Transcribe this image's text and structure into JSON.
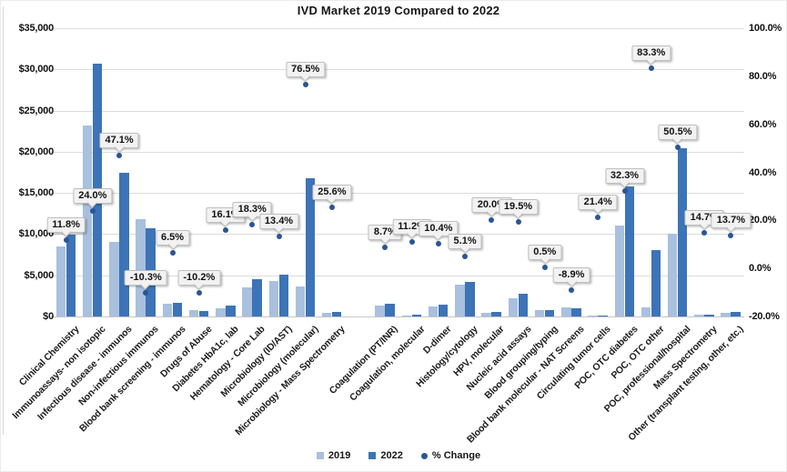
{
  "title": "IVD Market 2019 Compared to 2022",
  "legend": {
    "items": [
      {
        "label": "2019",
        "swatch": "square",
        "color": "#a9c0de"
      },
      {
        "label": "2022",
        "swatch": "square",
        "color": "#3d73b7"
      },
      {
        "label": "% Change",
        "swatch": "dot",
        "color": "#2b5594"
      }
    ]
  },
  "chart_data": {
    "type": "bar",
    "subtype": "combo-bar-with-percent-scatter",
    "title": "IVD Market 2019 Compared to 2022",
    "categories": [
      "Clinical Chemistry",
      "Immunoassays- non isotopic",
      "Infectious disease - immunos",
      "Non-infectious immunos",
      "Blood bank screening - immunos",
      "Drugs of Abuse",
      "Diabetes HbA1c, lab",
      "Hematology - Core Lab",
      "Microbiology (ID/AST)",
      "Microbiology (molecular)",
      "Microbiology - Mass Spectrometry",
      "Coagulation (PT/INR)",
      "Coagulation, molecular",
      "D-dimer",
      "Histology/cytology",
      "HPV, molecular",
      "Nucleic acid assays",
      "Blood grouping/typing",
      "Blood bank molecular - NAT Screens",
      "Circulating tumor cells",
      "POC, OTC diabetes",
      "POC, OTC other",
      "POC, professional/hospital",
      "Mass Spectrometry",
      "Other (transplant testing, other, etc.)"
    ],
    "series": [
      {
        "name": "2019",
        "color": "#a9c0de",
        "values": [
          8500,
          23200,
          9100,
          11800,
          1550,
          780,
          1000,
          3550,
          4350,
          3600,
          450,
          1350,
          150,
          1200,
          3900,
          450,
          2200,
          780,
          1150,
          100,
          11000,
          1150,
          10100,
          220,
          440
        ]
      },
      {
        "name": "2022",
        "color": "#3d73b7",
        "values": [
          9900,
          30700,
          17500,
          10700,
          1700,
          700,
          1300,
          4550,
          5100,
          16800,
          550,
          1550,
          200,
          1450,
          4200,
          590,
          2800,
          785,
          1050,
          130,
          15800,
          8100,
          20400,
          280,
          560
        ]
      }
    ],
    "pct_change": {
      "name": "% Change",
      "color": "#2b5594",
      "values": [
        11.8,
        24.0,
        47.1,
        -10.3,
        6.5,
        -10.2,
        16.1,
        18.3,
        13.4,
        76.5,
        25.6,
        8.7,
        11.2,
        10.4,
        5.1,
        20.0,
        19.5,
        0.5,
        -8.9,
        21.4,
        32.3,
        83.3,
        50.5,
        14.7,
        13.7
      ],
      "labels": [
        "11.8%",
        "24.0%",
        "47.1%",
        "-10.3%",
        "6.5%",
        "-10.2%",
        "16.1%",
        "18.3%",
        "13.4%",
        "76.5%",
        "25.6%",
        "8.7%",
        "11.2%",
        "10.4%",
        "5.1%",
        "20.0%",
        "19.5%",
        "0.5%",
        "-8.9%",
        "21.4%",
        "32.3%",
        "83.3%",
        "50.5%",
        "14.7%",
        "13.7%"
      ]
    },
    "value_axis": {
      "min": 0,
      "max": 35000,
      "step": 5000,
      "tick_labels": [
        "$0",
        "$5,000",
        "$10,000",
        "$15,000",
        "$20,000",
        "$25,000",
        "$30,000",
        "$35,000"
      ]
    },
    "secondary_axis": {
      "min": -20,
      "max": 100,
      "step": 20,
      "tick_labels": [
        "-20.0%",
        "0.0%",
        "20.0%",
        "40.0%",
        "60.0%",
        "80.0%",
        "100.0%"
      ]
    },
    "layout": {
      "gridlines": true,
      "legend_position": "bottom",
      "separator_slot_after_category_index": 10,
      "total_slots": 26,
      "gridline_color": "#dcdcdc",
      "callout_bg": "#f2f2f2",
      "callout_border": "#bfbfbf"
    }
  }
}
